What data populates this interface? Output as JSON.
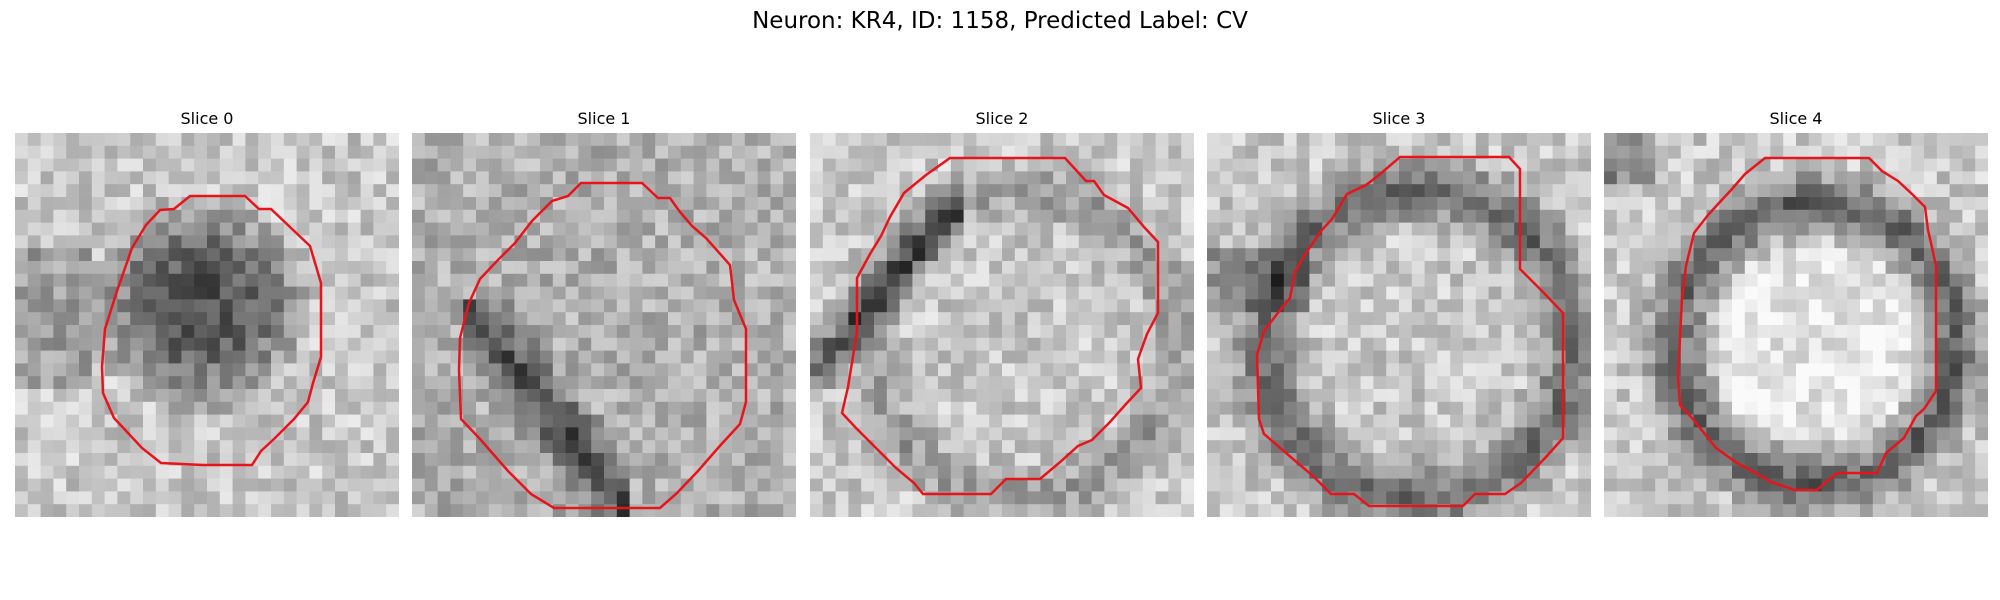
{
  "figure": {
    "title": "Neuron: KR4, ID: 1158, Predicted Label: CV"
  },
  "colors": {
    "contour": "#e8141c",
    "background": "#ffffff",
    "colormap": "grayscale"
  },
  "panels": [
    {
      "title": "Slice 0",
      "image": "grayscale-texture-dark-center",
      "contour": "red-outline"
    },
    {
      "title": "Slice 1",
      "image": "grayscale-texture-dark-lower-left-band",
      "contour": "red-outline"
    },
    {
      "title": "Slice 2",
      "image": "grayscale-texture-dark-upper-left-band",
      "contour": "red-outline"
    },
    {
      "title": "Slice 3",
      "image": "grayscale-texture-dark-ring",
      "contour": "red-outline"
    },
    {
      "title": "Slice 4",
      "image": "grayscale-texture-dark-ring-bright-center",
      "contour": "red-outline"
    }
  ]
}
